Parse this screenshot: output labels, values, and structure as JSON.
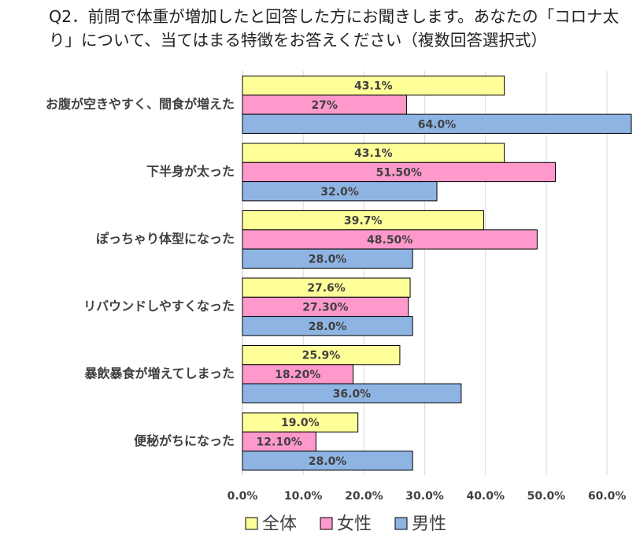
{
  "chart_data": {
    "type": "hbar",
    "title": "Q2．前問で体重が増加したと回答した方にお聞きします。あなたの「コロナ太り」について、当てはまる特徴をお答えください（複数回答選択式）",
    "categories": [
      "お腹が空きやすく、間食が増えた",
      "下半身が太った",
      "ぽっちゃり体型になった",
      "リバウンドしやすくなった",
      "暴飲暴食が増えてしまった",
      "便秘がちになった"
    ],
    "series": [
      {
        "name": "全体",
        "color": "#ffff99",
        "values": [
          43.1,
          43.1,
          39.7,
          27.6,
          25.9,
          19.0
        ],
        "value_labels": [
          "43.1%",
          "43.1%",
          "39.7%",
          "27.6%",
          "25.9%",
          "19.0%"
        ]
      },
      {
        "name": "女性",
        "color": "#ff99cc",
        "values": [
          27,
          51.5,
          48.5,
          27.3,
          18.2,
          12.1
        ],
        "value_labels": [
          "27%",
          "51.50%",
          "48.50%",
          "27.30%",
          "18.20%",
          "12.10%"
        ]
      },
      {
        "name": "男性",
        "color": "#8eb4e3",
        "values": [
          64.0,
          32.0,
          28.0,
          28.0,
          36.0,
          28.0
        ],
        "value_labels": [
          "64.0%",
          "32.0%",
          "28.0%",
          "28.0%",
          "36.0%",
          "28.0%"
        ]
      }
    ],
    "xlim": [
      0,
      64
    ],
    "xticks": [
      {
        "value": 0,
        "label": "0.0%"
      },
      {
        "value": 10,
        "label": "10.0%"
      },
      {
        "value": 20,
        "label": "20.0%"
      },
      {
        "value": 30,
        "label": "30.0%"
      },
      {
        "value": 40,
        "label": "40.0%"
      },
      {
        "value": 50,
        "label": "50.0%"
      },
      {
        "value": 60,
        "label": "60.0%"
      }
    ],
    "grid": true,
    "legend": "bottom"
  }
}
